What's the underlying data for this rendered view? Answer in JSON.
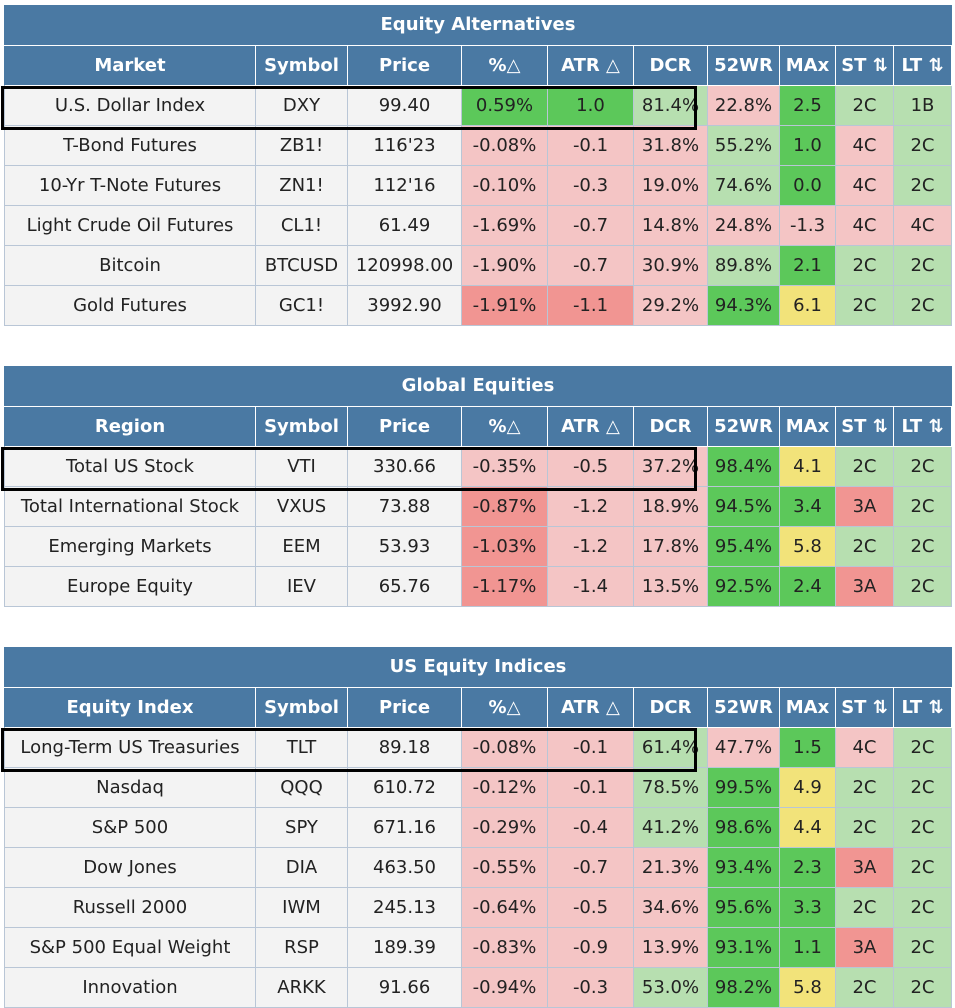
{
  "columns_common": [
    "Symbol",
    "Price",
    "%△",
    "ATR △",
    "DCR",
    "52WR",
    "MAx",
    "ST ⇅",
    "LT ⇅"
  ],
  "sections": [
    {
      "title": "Equity Alternatives",
      "first_col": "Market",
      "rows": [
        {
          "name": "U.S. Dollar Index",
          "symbol": "DXY",
          "price": "99.40",
          "pct": "0.59%",
          "atr": "1.0",
          "dcr": "81.4%",
          "wr52": "22.8%",
          "max": "2.5",
          "st": "2C",
          "lt": "1B"
        },
        {
          "name": "T-Bond Futures",
          "symbol": "ZB1!",
          "price": "116'23",
          "pct": "-0.08%",
          "atr": "-0.1",
          "dcr": "31.8%",
          "wr52": "55.2%",
          "max": "1.0",
          "st": "4C",
          "lt": "2C"
        },
        {
          "name": "10-Yr T-Note Futures",
          "symbol": "ZN1!",
          "price": "112'16",
          "pct": "-0.10%",
          "atr": "-0.3",
          "dcr": "19.0%",
          "wr52": "74.6%",
          "max": "0.0",
          "st": "4C",
          "lt": "2C"
        },
        {
          "name": "Light Crude Oil Futures",
          "symbol": "CL1!",
          "price": "61.49",
          "pct": "-1.69%",
          "atr": "-0.7",
          "dcr": "14.8%",
          "wr52": "24.8%",
          "max": "-1.3",
          "st": "4C",
          "lt": "4C"
        },
        {
          "name": "Bitcoin",
          "symbol": "BTCUSD",
          "price": "120998.00",
          "pct": "-1.90%",
          "atr": "-0.7",
          "dcr": "30.9%",
          "wr52": "89.8%",
          "max": "2.1",
          "st": "2C",
          "lt": "2C"
        },
        {
          "name": "Gold Futures",
          "symbol": "GC1!",
          "price": "3992.90",
          "pct": "-1.91%",
          "atr": "-1.1",
          "dcr": "29.2%",
          "wr52": "94.3%",
          "max": "6.1",
          "st": "2C",
          "lt": "2C"
        }
      ]
    },
    {
      "title": "Global Equities",
      "first_col": "Region",
      "rows": [
        {
          "name": "Total US Stock",
          "symbol": "VTI",
          "price": "330.66",
          "pct": "-0.35%",
          "atr": "-0.5",
          "dcr": "37.2%",
          "wr52": "98.4%",
          "max": "4.1",
          "st": "2C",
          "lt": "2C"
        },
        {
          "name": "Total International Stock",
          "symbol": "VXUS",
          "price": "73.88",
          "pct": "-0.87%",
          "atr": "-1.2",
          "dcr": "18.9%",
          "wr52": "94.5%",
          "max": "3.4",
          "st": "3A",
          "lt": "2C"
        },
        {
          "name": "Emerging Markets",
          "symbol": "EEM",
          "price": "53.93",
          "pct": "-1.03%",
          "atr": "-1.2",
          "dcr": "17.8%",
          "wr52": "95.4%",
          "max": "5.8",
          "st": "2C",
          "lt": "2C"
        },
        {
          "name": "Europe Equity",
          "symbol": "IEV",
          "price": "65.76",
          "pct": "-1.17%",
          "atr": "-1.4",
          "dcr": "13.5%",
          "wr52": "92.5%",
          "max": "2.4",
          "st": "3A",
          "lt": "2C"
        }
      ]
    },
    {
      "title": "US Equity Indices",
      "first_col": "Equity Index",
      "rows": [
        {
          "name": "Long-Term US Treasuries",
          "symbol": "TLT",
          "price": "89.18",
          "pct": "-0.08%",
          "atr": "-0.1",
          "dcr": "61.4%",
          "wr52": "47.7%",
          "max": "1.5",
          "st": "4C",
          "lt": "2C"
        },
        {
          "name": "Nasdaq",
          "symbol": "QQQ",
          "price": "610.72",
          "pct": "-0.12%",
          "atr": "-0.1",
          "dcr": "78.5%",
          "wr52": "99.5%",
          "max": "4.9",
          "st": "2C",
          "lt": "2C"
        },
        {
          "name": "S&P 500",
          "symbol": "SPY",
          "price": "671.16",
          "pct": "-0.29%",
          "atr": "-0.4",
          "dcr": "41.2%",
          "wr52": "98.6%",
          "max": "4.4",
          "st": "2C",
          "lt": "2C"
        },
        {
          "name": "Dow Jones",
          "symbol": "DIA",
          "price": "463.50",
          "pct": "-0.55%",
          "atr": "-0.7",
          "dcr": "21.3%",
          "wr52": "93.4%",
          "max": "2.3",
          "st": "3A",
          "lt": "2C"
        },
        {
          "name": "Russell 2000",
          "symbol": "IWM",
          "price": "245.13",
          "pct": "-0.64%",
          "atr": "-0.5",
          "dcr": "34.6%",
          "wr52": "95.6%",
          "max": "3.3",
          "st": "2C",
          "lt": "2C"
        },
        {
          "name": "S&P 500 Equal Weight",
          "symbol": "RSP",
          "price": "189.39",
          "pct": "-0.83%",
          "atr": "-0.9",
          "dcr": "13.9%",
          "wr52": "93.1%",
          "max": "1.1",
          "st": "3A",
          "lt": "2C"
        },
        {
          "name": "Innovation",
          "symbol": "ARKK",
          "price": "91.66",
          "pct": "-0.94%",
          "atr": "-0.3",
          "dcr": "53.0%",
          "wr52": "98.2%",
          "max": "5.8",
          "st": "2C",
          "lt": "2C"
        }
      ]
    }
  ],
  "highlighted_rows": [
    "U.S. Dollar Index",
    "Total US Stock",
    "Long-Term US Treasuries"
  ],
  "colors": {
    "header_blue": "#4a79a3",
    "neutral": "#f3f3f3",
    "light_red": "#f4c5c5",
    "red": "#f19592",
    "light_green": "#b7dfb0",
    "green": "#5cc85a",
    "yellow": "#f2e37a"
  }
}
